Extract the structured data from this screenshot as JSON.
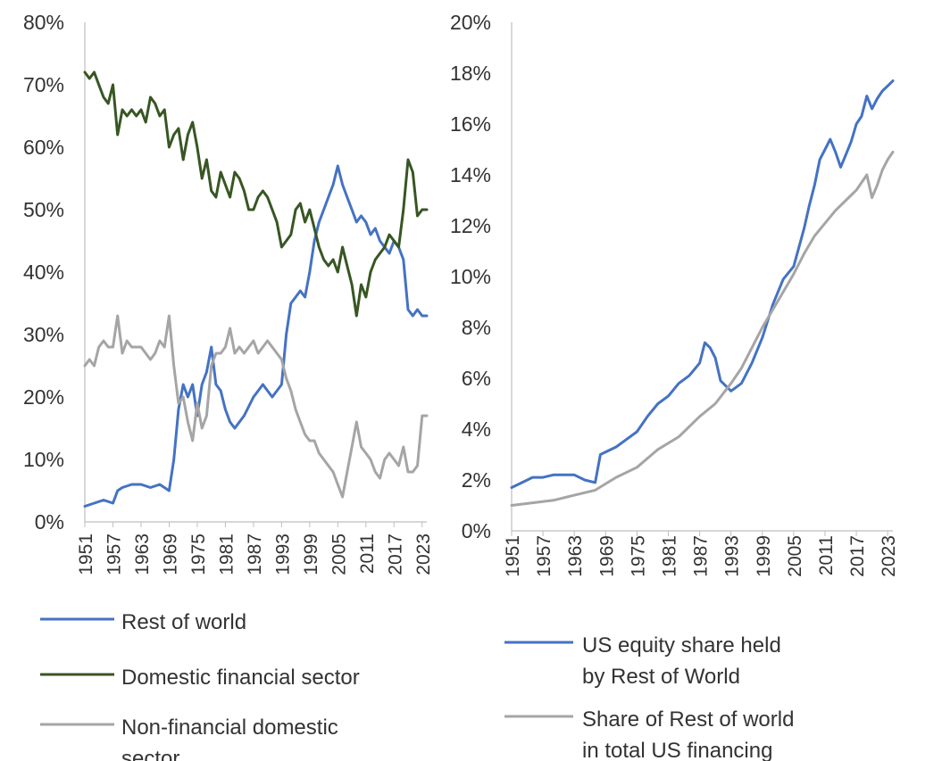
{
  "colors": {
    "rest_of_world": "#4472C4",
    "domestic_financial": "#375623",
    "non_financial": "#A5A5A5",
    "axis": "#BFBFBF",
    "text": "#333333"
  },
  "chart_data": [
    {
      "type": "line",
      "title": "",
      "xlabel": "",
      "ylabel": "",
      "xlim": [
        1951,
        2024
      ],
      "ylim": [
        0,
        80
      ],
      "y_tick_values": [
        0,
        10,
        20,
        30,
        40,
        50,
        60,
        70,
        80
      ],
      "y_tick_labels": [
        "0%",
        "10%",
        "20%",
        "30%",
        "40%",
        "50%",
        "60%",
        "70%",
        "80%"
      ],
      "x_tick_labels": [
        "1951",
        "1957",
        "1963",
        "1969",
        "1975",
        "1981",
        "1987",
        "1993",
        "1999",
        "2005",
        "2011",
        "2017",
        "2023"
      ],
      "legend_position": "bottom",
      "series": [
        {
          "name": "Rest of world",
          "color": "#4472C4",
          "x": [
            1951,
            1953,
            1955,
            1957,
            1958,
            1959,
            1961,
            1963,
            1965,
            1967,
            1969,
            1970,
            1971,
            1972,
            1973,
            1974,
            1975,
            1976,
            1977,
            1978,
            1979,
            1980,
            1981,
            1982,
            1983,
            1985,
            1987,
            1989,
            1991,
            1993,
            1994,
            1995,
            1996,
            1997,
            1998,
            1999,
            2000,
            2001,
            2002,
            2003,
            2004,
            2005,
            2006,
            2007,
            2008,
            2009,
            2010,
            2011,
            2012,
            2013,
            2014,
            2015,
            2016,
            2017,
            2018,
            2019,
            2020,
            2021,
            2022,
            2023,
            2024
          ],
          "values": [
            2.5,
            3,
            3.5,
            3,
            5,
            5.5,
            6,
            6,
            5.5,
            6,
            5,
            10,
            18,
            22,
            20,
            22,
            17,
            22,
            24,
            28,
            22,
            21,
            18,
            16,
            15,
            17,
            20,
            22,
            20,
            22,
            30,
            35,
            36,
            37,
            36,
            40,
            45,
            48,
            50,
            52,
            54,
            57,
            54,
            52,
            50,
            48,
            49,
            48,
            46,
            47,
            45,
            44,
            43,
            45,
            44,
            42,
            34,
            33,
            34,
            33,
            33
          ]
        },
        {
          "name": "Domestic financial sector",
          "color": "#375623",
          "x": [
            1951,
            1952,
            1953,
            1954,
            1955,
            1956,
            1957,
            1958,
            1959,
            1960,
            1961,
            1962,
            1963,
            1964,
            1965,
            1966,
            1967,
            1968,
            1969,
            1970,
            1971,
            1972,
            1973,
            1974,
            1975,
            1976,
            1977,
            1978,
            1979,
            1980,
            1981,
            1982,
            1983,
            1984,
            1985,
            1986,
            1987,
            1988,
            1989,
            1990,
            1991,
            1992,
            1993,
            1994,
            1995,
            1996,
            1997,
            1998,
            1999,
            2000,
            2001,
            2002,
            2003,
            2004,
            2005,
            2006,
            2007,
            2008,
            2009,
            2010,
            2011,
            2012,
            2013,
            2014,
            2015,
            2016,
            2017,
            2018,
            2019,
            2020,
            2021,
            2022,
            2023,
            2024
          ],
          "values": [
            72,
            71,
            72,
            70,
            68,
            67,
            70,
            62,
            66,
            65,
            66,
            65,
            66,
            64,
            68,
            67,
            65,
            66,
            60,
            62,
            63,
            58,
            62,
            64,
            60,
            55,
            58,
            53,
            52,
            56,
            54,
            52,
            56,
            55,
            53,
            50,
            50,
            52,
            53,
            52,
            50,
            48,
            44,
            45,
            46,
            50,
            51,
            48,
            50,
            47,
            44,
            42,
            41,
            42,
            40,
            44,
            41,
            38,
            33,
            38,
            36,
            40,
            42,
            43,
            44,
            46,
            45,
            44,
            50,
            58,
            56,
            49,
            50,
            50
          ]
        },
        {
          "name": "Non-financial domestic sector",
          "color": "#A5A5A5",
          "x": [
            1951,
            1952,
            1953,
            1954,
            1955,
            1956,
            1957,
            1958,
            1959,
            1960,
            1961,
            1962,
            1963,
            1964,
            1965,
            1966,
            1967,
            1968,
            1969,
            1970,
            1971,
            1972,
            1973,
            1974,
            1975,
            1976,
            1977,
            1978,
            1979,
            1980,
            1981,
            1982,
            1983,
            1984,
            1985,
            1986,
            1987,
            1988,
            1989,
            1990,
            1991,
            1992,
            1993,
            1994,
            1995,
            1996,
            1997,
            1998,
            1999,
            2000,
            2001,
            2002,
            2003,
            2004,
            2005,
            2006,
            2007,
            2008,
            2009,
            2010,
            2011,
            2012,
            2013,
            2014,
            2015,
            2016,
            2017,
            2018,
            2019,
            2020,
            2021,
            2022,
            2023,
            2024
          ],
          "values": [
            25,
            26,
            25,
            28,
            29,
            28,
            28,
            33,
            27,
            29,
            28,
            28,
            28,
            27,
            26,
            27,
            29,
            28,
            33,
            25,
            19,
            20,
            16,
            13,
            19,
            15,
            17,
            25,
            27,
            27,
            28,
            31,
            27,
            28,
            27,
            28,
            29,
            27,
            28,
            29,
            28,
            27,
            26,
            23,
            21,
            18,
            16,
            14,
            13,
            13,
            11,
            10,
            9,
            8,
            6,
            4,
            8,
            12,
            16,
            12,
            11,
            10,
            8,
            7,
            10,
            11,
            10,
            9,
            12,
            8,
            8,
            9,
            17,
            17
          ]
        }
      ]
    },
    {
      "type": "line",
      "title": "",
      "xlabel": "",
      "ylabel": "",
      "xlim": [
        1951,
        2024
      ],
      "ylim": [
        0,
        20
      ],
      "y_tick_values": [
        0,
        2,
        4,
        6,
        8,
        10,
        12,
        14,
        16,
        18,
        20
      ],
      "y_tick_labels": [
        "0%",
        "2%",
        "4%",
        "6%",
        "8%",
        "10%",
        "12%",
        "14%",
        "16%",
        "18%",
        "20%"
      ],
      "x_tick_labels": [
        "1951",
        "1957",
        "1963",
        "1969",
        "1975",
        "1981",
        "1987",
        "1993",
        "1999",
        "2005",
        "2011",
        "2017",
        "2023"
      ],
      "legend_position": "bottom",
      "series": [
        {
          "name": "US equity share held by  Rest of World",
          "color": "#4472C4",
          "x": [
            1951,
            1953,
            1955,
            1957,
            1959,
            1961,
            1963,
            1965,
            1967,
            1968,
            1969,
            1971,
            1973,
            1975,
            1977,
            1979,
            1981,
            1983,
            1985,
            1987,
            1988,
            1989,
            1990,
            1991,
            1993,
            1995,
            1997,
            1999,
            2001,
            2003,
            2005,
            2007,
            2008,
            2009,
            2010,
            2011,
            2012,
            2013,
            2014,
            2015,
            2016,
            2017,
            2018,
            2019,
            2020,
            2021,
            2022,
            2023,
            2024
          ],
          "values": [
            1.7,
            1.9,
            2.1,
            2.1,
            2.2,
            2.2,
            2.2,
            2.0,
            1.9,
            3.0,
            3.1,
            3.3,
            3.6,
            3.9,
            4.5,
            5.0,
            5.3,
            5.8,
            6.1,
            6.6,
            7.4,
            7.2,
            6.8,
            5.9,
            5.5,
            5.8,
            6.6,
            7.6,
            8.9,
            9.9,
            10.4,
            11.9,
            12.8,
            13.6,
            14.6,
            15.0,
            15.4,
            14.9,
            14.3,
            14.8,
            15.3,
            16.0,
            16.3,
            17.1,
            16.6,
            17.0,
            17.3,
            17.5,
            17.7
          ]
        },
        {
          "name": "Share of Rest of world in total US financing",
          "color": "#A5A5A5",
          "x": [
            1951,
            1955,
            1959,
            1963,
            1967,
            1971,
            1975,
            1979,
            1983,
            1987,
            1990,
            1993,
            1995,
            1997,
            1999,
            2001,
            2003,
            2005,
            2007,
            2009,
            2011,
            2013,
            2015,
            2017,
            2019,
            2020,
            2021,
            2022,
            2023,
            2024
          ],
          "values": [
            1.0,
            1.1,
            1.2,
            1.4,
            1.6,
            2.1,
            2.5,
            3.2,
            3.7,
            4.5,
            5.0,
            5.8,
            6.4,
            7.2,
            8.0,
            8.7,
            9.4,
            10.1,
            10.9,
            11.6,
            12.1,
            12.6,
            13.0,
            13.4,
            14.0,
            13.1,
            13.6,
            14.2,
            14.6,
            14.9
          ]
        }
      ]
    }
  ]
}
